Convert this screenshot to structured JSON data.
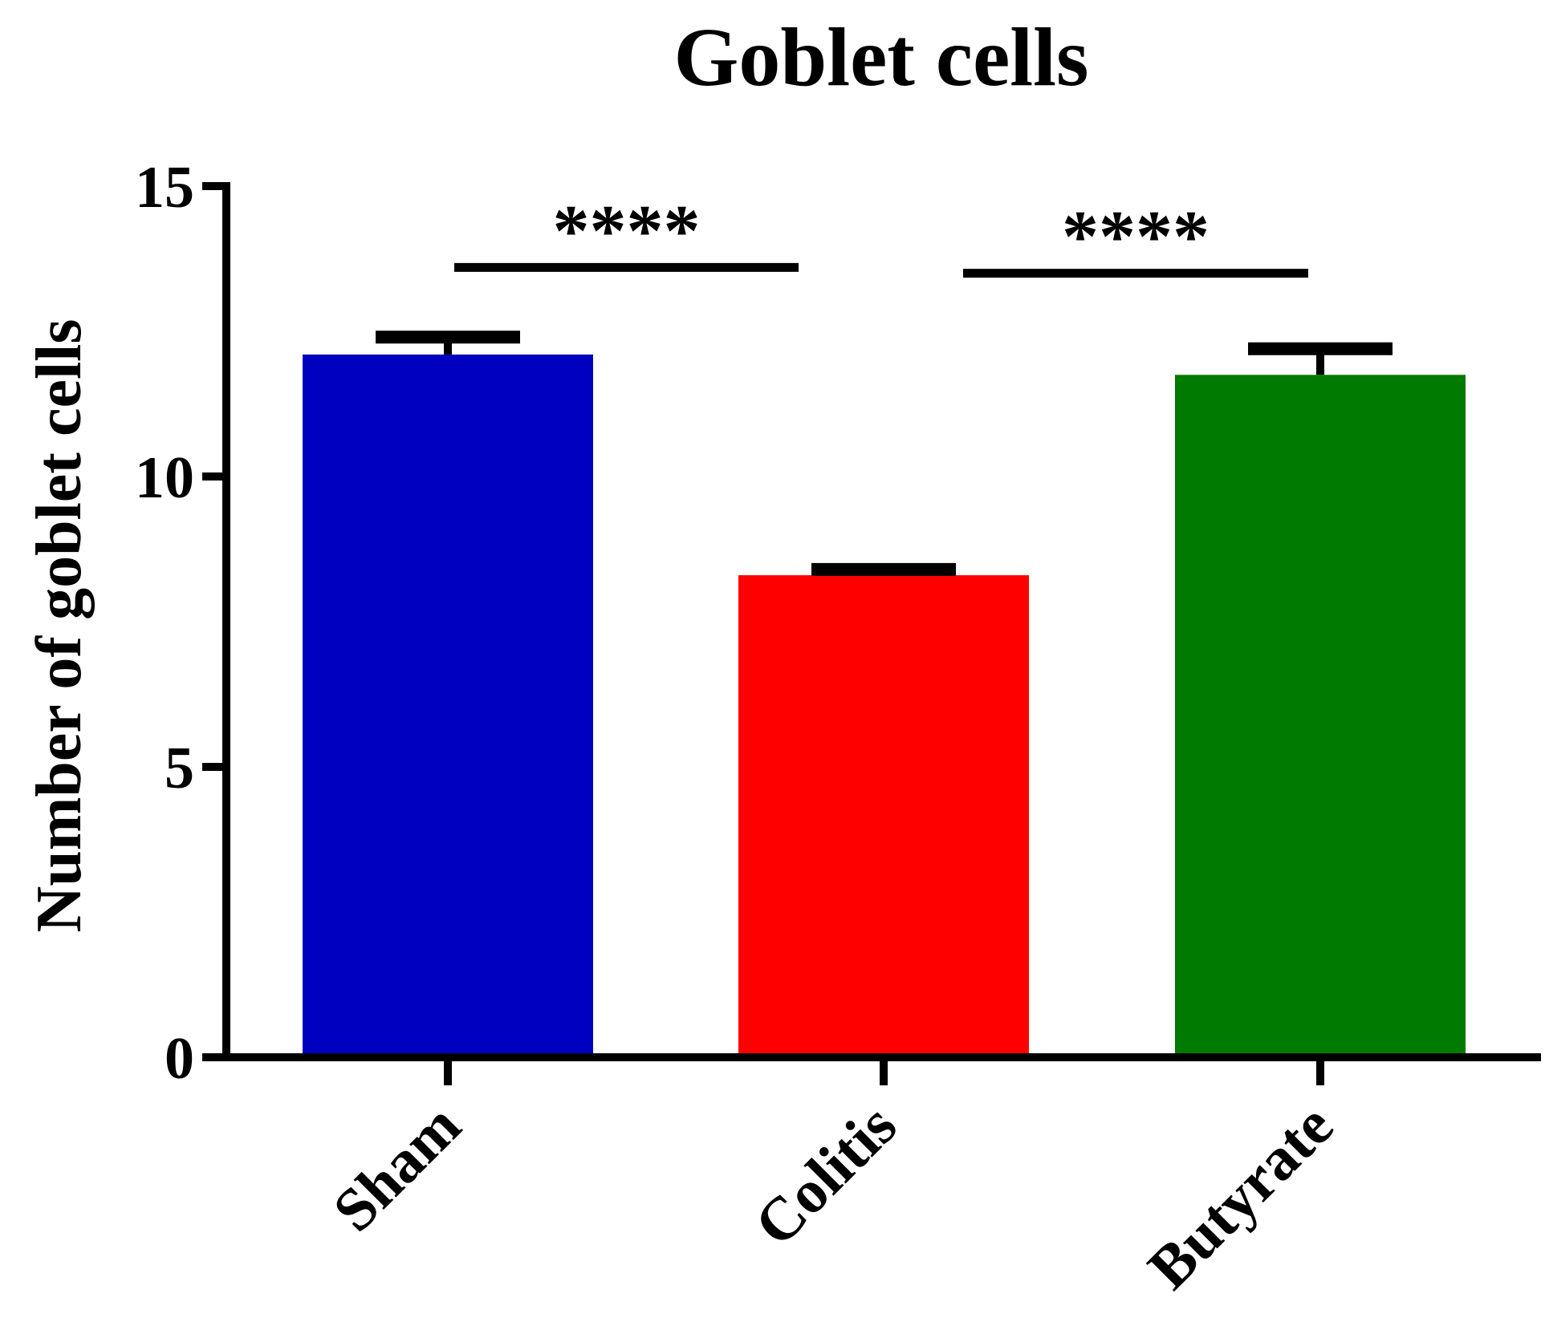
{
  "chart_data": {
    "type": "bar",
    "title": "Goblet cells",
    "xlabel": "",
    "ylabel": "Number of goblet cells",
    "ylim": [
      0,
      15
    ],
    "yticks": [
      0,
      5,
      10,
      15
    ],
    "categories": [
      "Sham",
      "Colitis",
      "Butyrate"
    ],
    "values": [
      12.1,
      8.3,
      11.75
    ],
    "errors": [
      0.3,
      0.1,
      0.45
    ],
    "colors": [
      "#0000C0",
      "#FF0000",
      "#007A00"
    ],
    "grid": false,
    "legend": "none",
    "significance": [
      {
        "from": 0,
        "to": 1,
        "label": "****",
        "y": 13.6
      },
      {
        "from": 1,
        "to": 2,
        "label": "****",
        "y": 13.5
      }
    ]
  }
}
